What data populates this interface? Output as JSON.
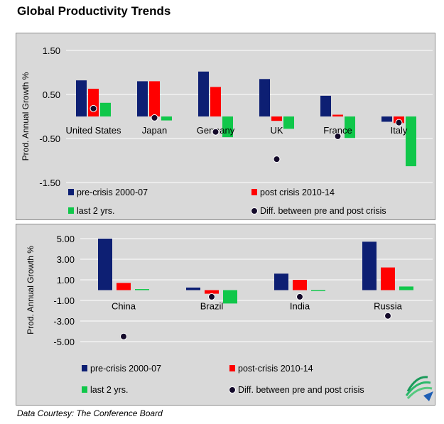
{
  "title": "Global Productivity Trends",
  "credit": "Data Courtesy: The Conference Board",
  "colors": {
    "pre": "#0d1f73",
    "post": "#ff0000",
    "last2": "#10c74a",
    "diff": "#140a2a",
    "grid": "#ffffff",
    "panel_bg": "#d9d9d9"
  },
  "chart_data": [
    {
      "type": "bar",
      "ylabel": "Prod. Annual Growth %",
      "ylim": [
        -1.5,
        1.5
      ],
      "yticks": [
        "1.50",
        "0.50",
        "-0.50",
        "-1.50"
      ],
      "ytick_values": [
        1.5,
        0.5,
        -0.5,
        -1.5
      ],
      "grid": true,
      "legend_placement": "bottom",
      "categories": [
        "United States",
        "Japan",
        "Germany",
        "UK",
        "France",
        "Italy"
      ],
      "series": [
        {
          "name": "pre-crisis 2000-07",
          "kind": "bar",
          "values": [
            0.82,
            0.8,
            1.02,
            0.85,
            0.47,
            -0.12
          ]
        },
        {
          "name": "post crisis 2010-14",
          "kind": "bar",
          "values": [
            0.63,
            0.8,
            0.67,
            -0.1,
            0.04,
            -0.15
          ]
        },
        {
          "name": "last 2 yrs.",
          "kind": "bar",
          "values": [
            0.31,
            -0.09,
            -0.47,
            -0.28,
            -0.49,
            -1.13
          ]
        },
        {
          "name": "Diff. between pre and post crisis",
          "kind": "marker",
          "values": [
            0.18,
            -0.03,
            -0.35,
            -0.97,
            -0.45,
            -0.14
          ]
        }
      ]
    },
    {
      "type": "bar",
      "ylabel": "Prod. Annual Growth %",
      "ylim": [
        -5.0,
        5.0
      ],
      "yticks": [
        "5.00",
        "3.00",
        "1.00",
        "-1.00",
        "-3.00",
        "-5.00"
      ],
      "ytick_values": [
        5,
        3,
        1,
        -1,
        -3,
        -5
      ],
      "grid": true,
      "legend_placement": "bottom",
      "categories": [
        "China",
        "Brazil",
        "India",
        "Russia"
      ],
      "series": [
        {
          "name": "pre-crisis 2000-07",
          "kind": "bar",
          "values": [
            5.0,
            0.25,
            1.6,
            4.7
          ]
        },
        {
          "name": "post-crisis 2010-14",
          "kind": "bar",
          "values": [
            0.7,
            -0.35,
            1.0,
            2.2
          ]
        },
        {
          "name": "last 2 yrs.",
          "kind": "bar",
          "values": [
            0.1,
            -1.3,
            -0.1,
            0.35
          ]
        },
        {
          "name": "Diff. between pre and post crisis",
          "kind": "marker",
          "values": [
            -4.5,
            -0.65,
            -0.65,
            -2.5
          ]
        }
      ]
    }
  ]
}
